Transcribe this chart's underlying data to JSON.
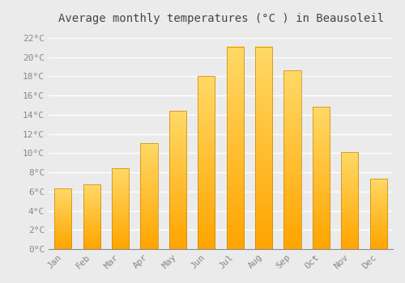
{
  "title": "Average monthly temperatures (°C ) in Beausoleil",
  "months": [
    "Jan",
    "Feb",
    "Mar",
    "Apr",
    "May",
    "Jun",
    "Jul",
    "Aug",
    "Sep",
    "Oct",
    "Nov",
    "Dec"
  ],
  "values": [
    6.3,
    6.7,
    8.4,
    11.0,
    14.4,
    18.0,
    21.1,
    21.1,
    18.6,
    14.8,
    10.1,
    7.3
  ],
  "bar_color_bottom": "#FFA500",
  "bar_color_top": "#FFD966",
  "bar_edge_color": "#C8860A",
  "ylim": [
    0,
    23
  ],
  "yticks": [
    0,
    2,
    4,
    6,
    8,
    10,
    12,
    14,
    16,
    18,
    20,
    22
  ],
  "background_color": "#EBEBEB",
  "grid_color": "#FFFFFF",
  "title_fontsize": 10,
  "tick_fontsize": 8,
  "title_color": "#444444",
  "tick_color": "#888888",
  "bar_width": 0.6
}
